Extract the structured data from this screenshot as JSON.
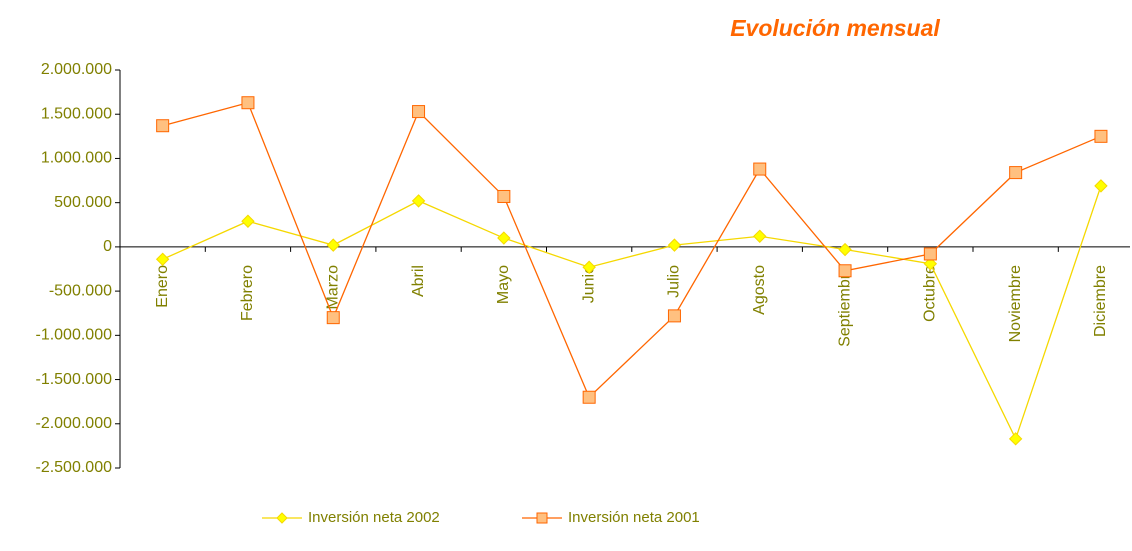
{
  "chart_data": {
    "type": "line",
    "title": "Evolución mensual",
    "categories": [
      "Enero",
      "Febrero",
      "Marzo",
      "Abril",
      "Mayo",
      "Junio",
      "Julio",
      "Agosto",
      "Septiembre",
      "Octubre",
      "Noviembre",
      "Diciembre"
    ],
    "series": [
      {
        "name": "Inversión neta 2002",
        "color": "#f5d800",
        "marker_fill": "#ffff00",
        "marker": "diamond",
        "values": [
          -140000,
          290000,
          20000,
          520000,
          100000,
          -230000,
          20000,
          120000,
          -30000,
          -190000,
          -2170000,
          690000
        ]
      },
      {
        "name": "Inversión neta 2001",
        "color": "#ff6600",
        "marker_fill": "#ffc080",
        "marker": "square",
        "values": [
          1370000,
          1630000,
          -800000,
          1530000,
          570000,
          -1700000,
          -780000,
          880000,
          -270000,
          -80000,
          840000,
          1250000
        ]
      }
    ],
    "ylim": [
      -2500000,
      2000000
    ],
    "yticks": [
      {
        "value": 2000000,
        "label": "2.000.000"
      },
      {
        "value": 1500000,
        "label": "1.500.000"
      },
      {
        "value": 1000000,
        "label": "1.000.000"
      },
      {
        "value": 500000,
        "label": "500.000"
      },
      0,
      {
        "value": -500000,
        "label": "-500.000"
      },
      {
        "value": -1000000,
        "label": "-1.000.000"
      },
      {
        "value": -1500000,
        "label": "-1.500.000"
      },
      {
        "value": -2000000,
        "label": "-2.000.000"
      },
      {
        "value": -2500000,
        "label": "-2.500.000"
      }
    ],
    "legend": "bottom"
  }
}
